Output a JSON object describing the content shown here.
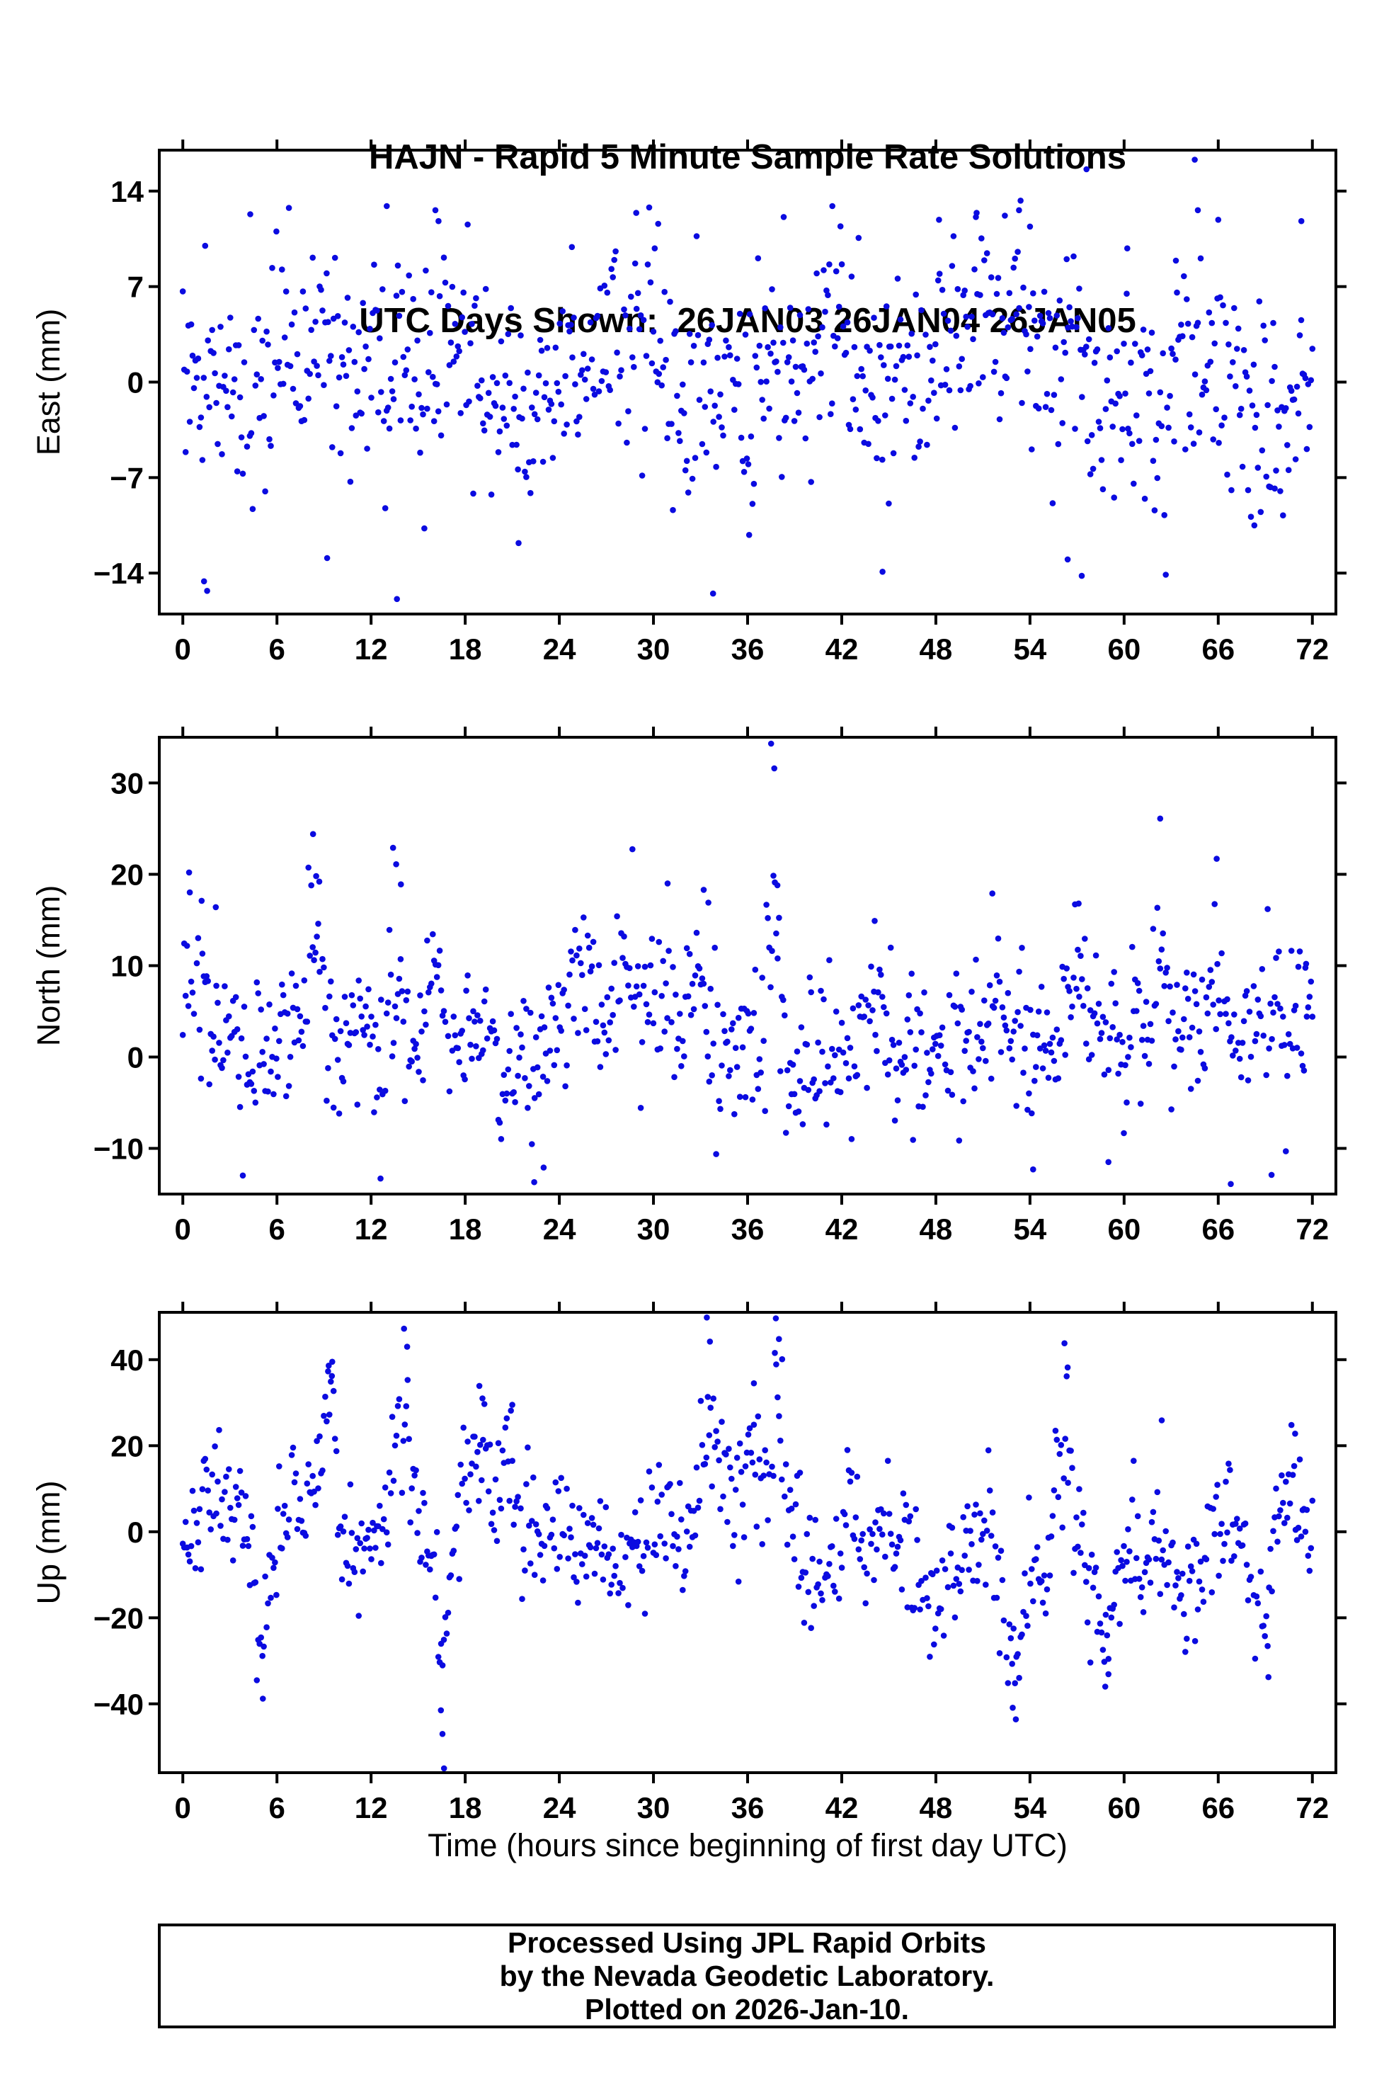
{
  "title": {
    "line1": "HAJN - Rapid 5 Minute Sample Rate Solutions",
    "line2": "UTC Days Shown:  26JAN03 26JAN04 26JAN05"
  },
  "footer": {
    "line1": "Processed Using JPL Rapid Orbits",
    "line2": "by the Nevada Geodetic Laboratory.",
    "line3": "Plotted on 2026-Jan-10."
  },
  "colors": {
    "point": "#0b0be0",
    "frame": "#000000",
    "text": "#000000",
    "background": "#ffffff"
  },
  "chart_data": {
    "type": "scatter",
    "station": "HAJN",
    "solution_type": "Rapid 5 Minute Sample Rate Solutions",
    "utc_days_shown": [
      "26JAN03",
      "26JAN04",
      "26JAN05"
    ],
    "sample_interval_minutes": 5,
    "duration_hours": 72,
    "xlabel": "Time (hours since beginning of first day UTC)",
    "xlim": [
      -1.5,
      73.5
    ],
    "x_ticks": [
      0,
      6,
      12,
      18,
      24,
      30,
      36,
      42,
      48,
      54,
      60,
      66,
      72
    ],
    "grid": false,
    "legend": false,
    "panels": [
      {
        "id": "east",
        "ylabel": "East (mm)",
        "ylim": [
          -17,
          17
        ],
        "y_ticks": [
          -14,
          -7,
          0,
          7,
          14
        ],
        "typical_band_mm": [
          -10,
          12
        ],
        "synthesis": {
          "seed": 20031,
          "n": 810,
          "mean": 0.2,
          "sd": 3.9,
          "walk_step": 0.5,
          "revert": 0.975,
          "gap_prob": 0.02,
          "clip": [
            -16.0,
            15.0
          ]
        },
        "bumps": [
          [
            7.5,
            3,
            1.2
          ],
          [
            28,
            3,
            1.0
          ],
          [
            50,
            4,
            1.5
          ],
          [
            64,
            4,
            1.0
          ],
          [
            20,
            -3,
            1.5
          ],
          [
            34,
            -3,
            1.2
          ],
          [
            70,
            -4,
            1.0
          ]
        ],
        "extra_points": [
          [
            1.35,
            -14.6
          ],
          [
            1.55,
            -15.3
          ],
          [
            4.3,
            12.3
          ],
          [
            9.2,
            -12.9
          ],
          [
            13.0,
            12.9
          ],
          [
            13.65,
            -15.9
          ],
          [
            16.1,
            12.6
          ],
          [
            16.3,
            11.8
          ],
          [
            21.4,
            -11.8
          ],
          [
            24.8,
            9.9
          ],
          [
            28.9,
            12.4
          ],
          [
            30.3,
            11.6
          ],
          [
            33.8,
            -15.5
          ],
          [
            36.1,
            -11.2
          ],
          [
            38.3,
            12.1
          ],
          [
            41.4,
            12.9
          ],
          [
            44.6,
            -13.9
          ],
          [
            45.0,
            -8.9
          ],
          [
            48.2,
            11.9
          ],
          [
            50.6,
            12.4
          ],
          [
            52.4,
            12.2
          ],
          [
            53.3,
            12.6
          ],
          [
            54.0,
            11.4
          ],
          [
            56.4,
            -13.0
          ],
          [
            57.3,
            -14.2
          ],
          [
            57.6,
            15.6
          ],
          [
            60.2,
            9.8
          ],
          [
            63.3,
            8.9
          ],
          [
            64.5,
            16.3
          ],
          [
            64.7,
            12.6
          ],
          [
            66.0,
            11.9
          ],
          [
            68.3,
            -10.5
          ],
          [
            69.6,
            -7.8
          ],
          [
            71.3,
            11.8
          ]
        ]
      },
      {
        "id": "north",
        "ylabel": "North (mm)",
        "ylim": [
          -15,
          35
        ],
        "y_ticks": [
          -10,
          0,
          10,
          20,
          30
        ],
        "typical_band_mm": [
          -8,
          14
        ],
        "synthesis": {
          "seed": 20032,
          "n": 810,
          "mean": 2.8,
          "sd": 4.3,
          "walk_step": 0.6,
          "revert": 0.98,
          "gap_prob": 0.02,
          "clip": [
            -13.5,
            33.0
          ]
        },
        "bumps": [
          [
            0.8,
            10,
            0.5
          ],
          [
            8.4,
            12,
            0.45
          ],
          [
            13.5,
            12,
            0.4
          ],
          [
            16.0,
            6,
            0.5
          ],
          [
            25.5,
            7,
            0.6
          ],
          [
            28.5,
            8,
            0.5
          ],
          [
            33.0,
            8,
            0.5
          ],
          [
            37.6,
            16,
            0.35
          ],
          [
            44.0,
            7,
            0.5
          ],
          [
            51.5,
            8,
            0.6
          ],
          [
            57.0,
            8,
            0.5
          ],
          [
            62.3,
            12,
            0.3
          ],
          [
            66.0,
            9,
            0.4
          ],
          [
            12.8,
            -8,
            0.5
          ],
          [
            22.5,
            -8,
            0.5
          ]
        ],
        "extra_points": [
          [
            0.4,
            20.2
          ],
          [
            1.2,
            17.1
          ],
          [
            2.1,
            16.4
          ],
          [
            8.3,
            24.4
          ],
          [
            8.5,
            19.8
          ],
          [
            8.7,
            19.2
          ],
          [
            12.6,
            -13.3
          ],
          [
            13.4,
            22.9
          ],
          [
            13.6,
            21.1
          ],
          [
            13.9,
            18.9
          ],
          [
            22.4,
            -13.7
          ],
          [
            23.0,
            -12.1
          ],
          [
            30.9,
            19.0
          ],
          [
            33.2,
            18.3
          ],
          [
            33.5,
            16.9
          ],
          [
            37.5,
            34.3
          ],
          [
            37.7,
            31.6
          ],
          [
            37.9,
            18.8
          ],
          [
            44.1,
            14.9
          ],
          [
            51.6,
            17.9
          ],
          [
            54.2,
            -12.3
          ],
          [
            57.1,
            16.8
          ],
          [
            59.0,
            -11.5
          ],
          [
            62.3,
            26.1
          ],
          [
            65.9,
            21.7
          ],
          [
            66.8,
            -13.9
          ],
          [
            69.4,
            -12.9
          ],
          [
            71.6,
            10.2
          ]
        ]
      },
      {
        "id": "up",
        "ylabel": "Up (mm)",
        "ylim": [
          -56,
          51
        ],
        "y_ticks": [
          -40,
          -20,
          0,
          20,
          40
        ],
        "typical_band_mm": [
          -25,
          18
        ],
        "synthesis": {
          "seed": 20033,
          "n": 810,
          "mean": -2.0,
          "sd": 7.5,
          "walk_step": 1.5,
          "revert": 0.975,
          "gap_prob": 0.02,
          "clip": [
            -52,
            48.5
          ]
        },
        "bumps": [
          [
            2.0,
            10,
            0.8
          ],
          [
            5.1,
            -26,
            0.6
          ],
          [
            7.0,
            8,
            0.6
          ],
          [
            9.1,
            28,
            0.6
          ],
          [
            9.4,
            12,
            0.3
          ],
          [
            11.2,
            -16,
            0.5
          ],
          [
            14.1,
            34,
            0.55
          ],
          [
            16.55,
            -38,
            0.35
          ],
          [
            18.0,
            18,
            0.5
          ],
          [
            19.0,
            22,
            0.5
          ],
          [
            20.8,
            20,
            0.5
          ],
          [
            23.5,
            6,
            0.8
          ],
          [
            27.5,
            -10,
            0.8
          ],
          [
            30.0,
            10,
            0.5
          ],
          [
            33.4,
            30,
            0.5
          ],
          [
            34.6,
            14,
            0.6
          ],
          [
            36.3,
            22,
            0.6
          ],
          [
            37.9,
            34,
            0.45
          ],
          [
            40.0,
            -12,
            0.8
          ],
          [
            42.5,
            8,
            0.6
          ],
          [
            45.0,
            6,
            0.6
          ],
          [
            47.5,
            -14,
            0.7
          ],
          [
            50.0,
            8,
            0.5
          ],
          [
            52.9,
            -26,
            0.5
          ],
          [
            56.2,
            30,
            0.6
          ],
          [
            58.8,
            -20,
            0.5
          ],
          [
            60.5,
            10,
            0.5
          ],
          [
            62.2,
            14,
            0.5
          ],
          [
            64.0,
            -10,
            0.6
          ],
          [
            66.5,
            6,
            0.5
          ],
          [
            68.8,
            -18,
            0.5
          ],
          [
            70.8,
            12,
            0.5
          ]
        ],
        "extra_points": [
          [
            5.1,
            -38.8
          ],
          [
            9.3,
            38.6
          ],
          [
            9.5,
            36.2
          ],
          [
            14.1,
            47.2
          ],
          [
            14.3,
            43.0
          ],
          [
            16.45,
            -41.5
          ],
          [
            16.55,
            -47.0
          ],
          [
            16.65,
            -55.0
          ],
          [
            18.9,
            33.9
          ],
          [
            19.1,
            31.0
          ],
          [
            21.0,
            29.5
          ],
          [
            33.4,
            49.8
          ],
          [
            33.6,
            44.2
          ],
          [
            36.4,
            34.5
          ],
          [
            37.8,
            49.6
          ],
          [
            38.0,
            44.8
          ],
          [
            38.2,
            40.1
          ],
          [
            52.9,
            -40.9
          ],
          [
            53.1,
            -43.6
          ],
          [
            56.2,
            43.8
          ],
          [
            56.4,
            38.2
          ],
          [
            58.8,
            -36.0
          ],
          [
            59.0,
            -33.1
          ],
          [
            62.4,
            25.9
          ],
          [
            69.2,
            -33.8
          ],
          [
            70.9,
            22.8
          ]
        ]
      }
    ]
  }
}
